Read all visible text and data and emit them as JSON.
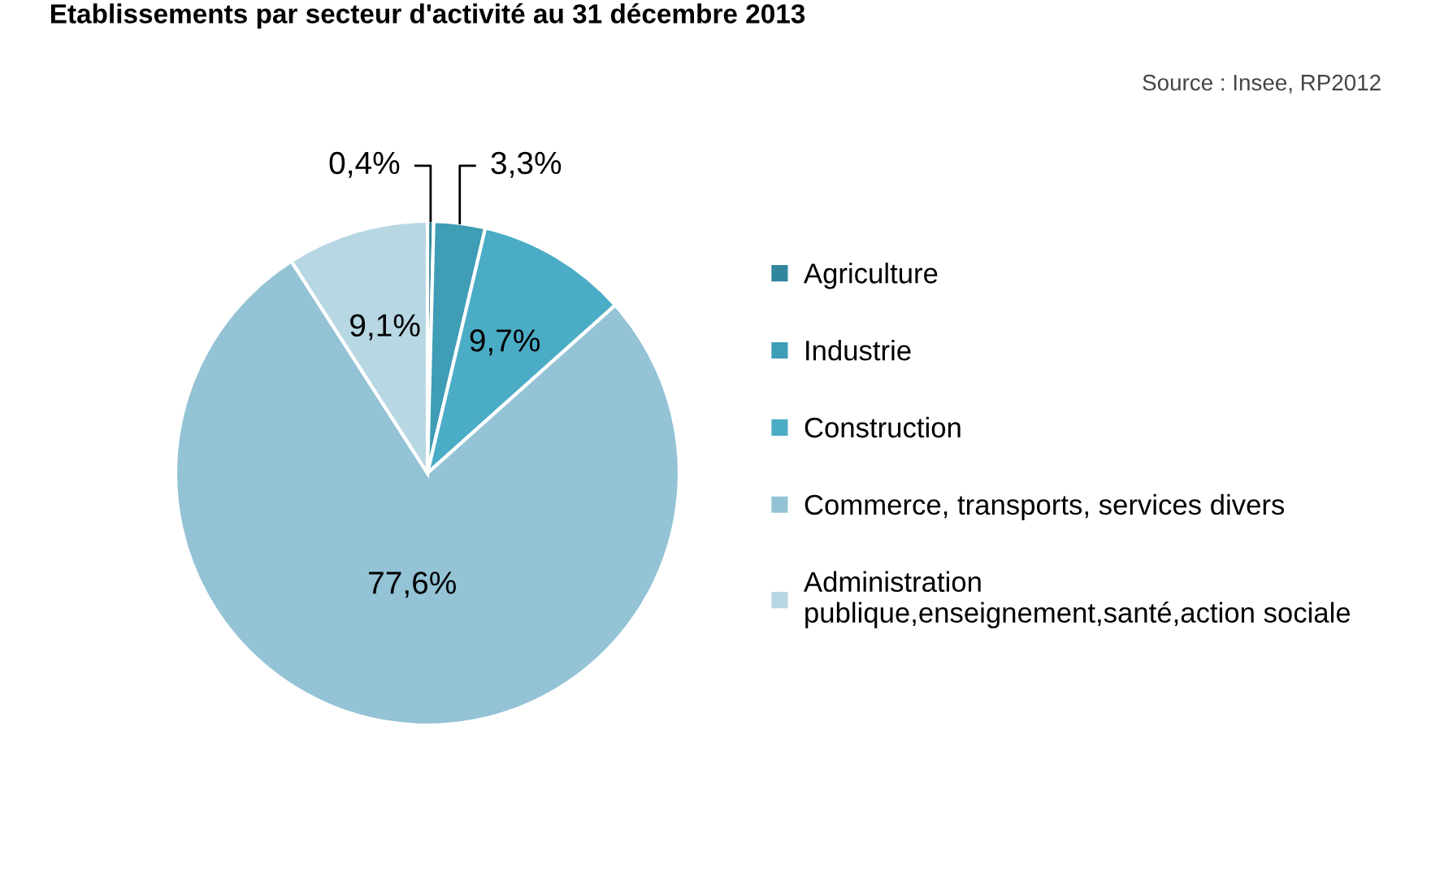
{
  "chart_data": {
    "type": "pie",
    "title": "Etablissements par secteur d'activité au 31 décembre 2013",
    "categories": [
      "Agriculture",
      "Industrie",
      "Construction",
      "Commerce, transports, services divers",
      "Administration\npublique,enseignement,santé,action sociale"
    ],
    "values": [
      0.4,
      3.3,
      9.7,
      77.6,
      9.1
    ],
    "colors": [
      "#31859c",
      "#3f9db5",
      "#4bacc6",
      "#93c3d5",
      "#b7d7e3"
    ],
    "value_labels": [
      "0,4%",
      "3,3%",
      "9,7%",
      "77,6%",
      "9,1%"
    ],
    "annotations": [
      "Source : Insee, RP2012"
    ],
    "legend": "right"
  }
}
